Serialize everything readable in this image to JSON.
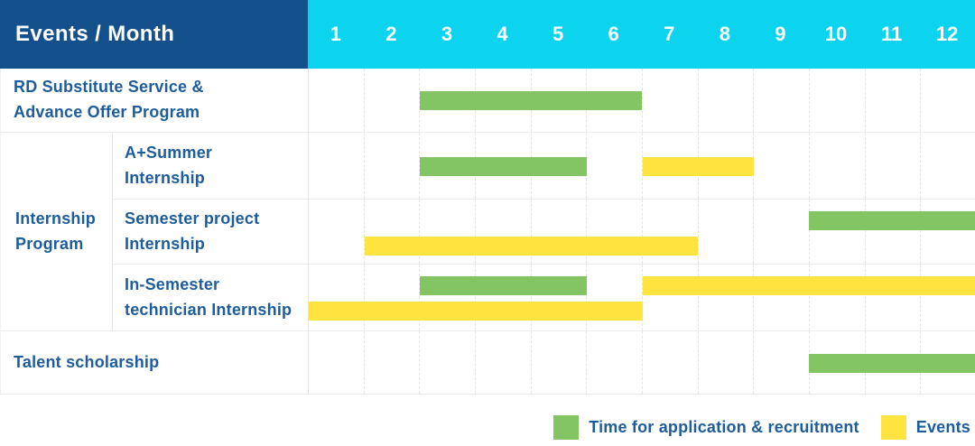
{
  "colors": {
    "header_navy": "#14508c",
    "header_cyan": "#0cd3ee",
    "recruitment_green": "#84c563",
    "event_yellow": "#ffe33f",
    "label_blue": "#1d5c9d"
  },
  "chart_data": {
    "type": "gantt",
    "title": "Events / Month",
    "month_labels": [
      "1",
      "2",
      "3",
      "4",
      "5",
      "6",
      "7",
      "8",
      "9",
      "10",
      "11",
      "12"
    ],
    "x_range": [
      1,
      12
    ],
    "rows": [
      {
        "label": "RD Substitute Service &\nAdvance Offer Program",
        "group": null,
        "bars": [
          {
            "type": "recruitment",
            "start": 3,
            "end": 6,
            "line": "center"
          }
        ]
      },
      {
        "label": "A+Summer\nInternship",
        "group": "Internship Program",
        "bars": [
          {
            "type": "recruitment",
            "start": 3,
            "end": 5,
            "line": "center"
          },
          {
            "type": "event",
            "start": 7,
            "end": 8,
            "line": "center"
          }
        ]
      },
      {
        "label": "Semester project\nInternship",
        "group": "Internship Program",
        "bars": [
          {
            "type": "recruitment",
            "start": 10,
            "end": 12,
            "line": "upper"
          },
          {
            "type": "event",
            "start": 2,
            "end": 7,
            "line": "lower"
          }
        ]
      },
      {
        "label": "In-Semester\ntechnician Internship",
        "group": "Internship Program",
        "bars": [
          {
            "type": "recruitment",
            "start": 3,
            "end": 5,
            "line": "upper"
          },
          {
            "type": "event",
            "start": 7,
            "end": 12,
            "line": "upper"
          },
          {
            "type": "event",
            "start": 1,
            "end": 6,
            "line": "lower"
          }
        ]
      },
      {
        "label": "Talent scholarship",
        "group": null,
        "bars": [
          {
            "type": "recruitment",
            "start": 10,
            "end": 12,
            "line": "center"
          }
        ]
      }
    ]
  },
  "legend": {
    "items": [
      {
        "label": "Time for application & recruitment",
        "type": "recruitment",
        "color": "#84c563"
      },
      {
        "label": "Events",
        "type": "event",
        "color": "#ffe33f"
      }
    ]
  }
}
